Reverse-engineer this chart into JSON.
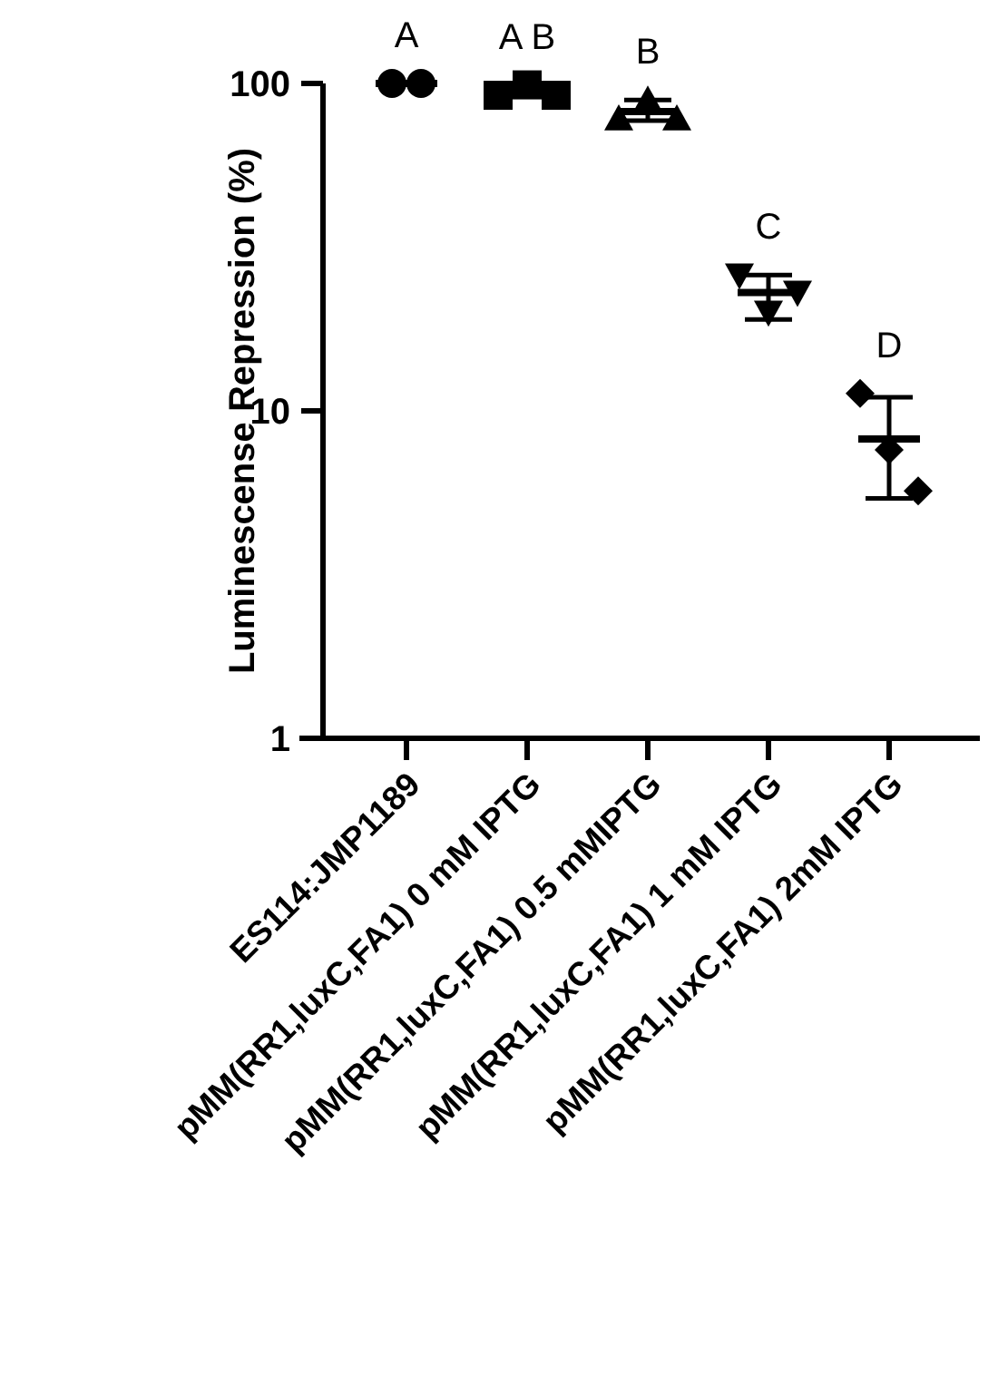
{
  "chart_data": {
    "type": "scatter",
    "ylabel": "Luminescense Repression (%)",
    "categories": [
      "ES114:JMP1189",
      "pMM(RR1,luxC,FA1) 0 mM IPTG",
      "pMM(RR1,luxC,FA1) 0.5 mMIPTG",
      "pMM(RR1,luxC,FA1) 1 mM IPTG",
      "pMM(RR1,luxC,FA1) 2mM IPTG"
    ],
    "log": "y",
    "ylim": [
      1,
      100
    ],
    "yticks": [
      1,
      10,
      100
    ],
    "series": [
      {
        "color": "#000000",
        "marker": "circle",
        "x": [
          "ES114:JMP1189",
          "ES114:JMP1189"
        ],
        "values": [
          100,
          100
        ]
      },
      {
        "color": "#000000",
        "marker": "square",
        "x": [
          "pMM(RR1,luxC,FA1) 0 mM IPTG",
          "pMM(RR1,luxC,FA1) 0 mM IPTG",
          "pMM(RR1,luxC,FA1) 0 mM IPTG"
        ],
        "values": [
          92,
          99,
          92
        ]
      },
      {
        "color": "#000000",
        "marker": "triangle",
        "x": [
          "pMM(RR1,luxC,FA1) 0.5 mMIPTG",
          "pMM(RR1,luxC,FA1) 0.5 mMIPTG",
          "pMM(RR1,luxC,FA1) 0.5 mMIPTG"
        ],
        "values": [
          78,
          89,
          78
        ]
      },
      {
        "color": "#000000",
        "marker": "triangle-down",
        "x": [
          "pMM(RR1,luxC,FA1) 1 mM IPTG",
          "pMM(RR1,luxC,FA1) 1 mM IPTG",
          "pMM(RR1,luxC,FA1) 1 mM IPTG"
        ],
        "values": [
          26,
          20,
          23
        ]
      },
      {
        "color": "#000000",
        "marker": "diamond",
        "x": [
          "pMM(RR1,luxC,FA1) 2mM IPTG",
          "pMM(RR1,luxC,FA1) 2mM IPTG",
          "pMM(RR1,luxC,FA1) 2mM IPTG"
        ],
        "values": [
          11.3,
          7.6,
          5.7
        ]
      },
      {
        "type": "box",
        "color": "#000000",
        "boxes": [
          {
            "low": 100,
            "q1": 100,
            "median": 100,
            "q3": 100,
            "high": 100
          },
          {
            "low": 94,
            "q1": 94,
            "median": 94,
            "q3": 94,
            "high": 94
          },
          {
            "low": 77,
            "q1": 82,
            "median": 82,
            "q3": 82,
            "high": 89
          },
          {
            "low": 19,
            "q1": 23,
            "median": 23,
            "q3": 23,
            "high": 26
          },
          {
            "low": 5.4,
            "q1": 8.2,
            "median": 8.2,
            "q3": 8.2,
            "high": 11
          }
        ]
      }
    ],
    "annotations": [
      "A",
      "A B",
      "B",
      "C",
      "D"
    ]
  }
}
